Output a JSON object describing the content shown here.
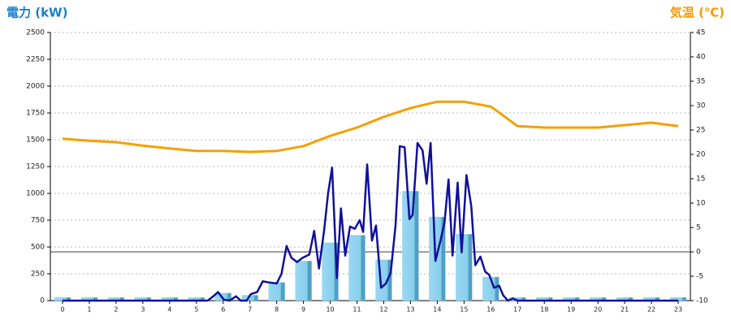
{
  "chart_data": {
    "type": "bar",
    "title": "電力 (kW)",
    "y2_title": "気温 (℃)",
    "title_color": "#1a7fc8",
    "y2_title_color": "#f59a00",
    "categories": [
      "0",
      "1",
      "2",
      "3",
      "4",
      "5",
      "6",
      "7",
      "8",
      "9",
      "10",
      "11",
      "12",
      "13",
      "14",
      "15",
      "16",
      "17",
      "18",
      "19",
      "20",
      "21",
      "22",
      "23"
    ],
    "series": [
      {
        "type": "bar",
        "color": "#87ceeb",
        "values": [
          30,
          30,
          30,
          30,
          30,
          30,
          70,
          50,
          170,
          370,
          540,
          610,
          380,
          1020,
          780,
          620,
          220,
          30,
          30,
          30,
          30,
          30,
          30,
          30
        ]
      },
      {
        "type": "line",
        "color": "#10109a",
        "x": [
          0,
          5.42,
          5.63,
          5.81,
          6.02,
          6.24,
          6.48,
          6.66,
          6.88,
          7.03,
          7.27,
          7.48,
          7.7,
          8.0,
          8.18,
          8.37,
          8.55,
          8.76,
          8.97,
          9.22,
          9.4,
          9.58,
          9.77,
          9.92,
          10.07,
          10.25,
          10.4,
          10.56,
          10.74,
          10.92,
          11.1,
          11.23,
          11.38,
          11.56,
          11.71,
          11.9,
          12.08,
          12.26,
          12.44,
          12.6,
          12.78,
          12.96,
          13.08,
          13.26,
          13.45,
          13.6,
          13.75,
          13.93,
          14.12,
          14.27,
          14.42,
          14.57,
          14.76,
          14.91,
          15.09,
          15.27,
          15.42,
          15.61,
          15.79,
          15.94,
          16.12,
          16.31,
          16.46,
          16.64,
          16.82,
          17,
          23
        ],
        "values": [
          0,
          0,
          40,
          80,
          10,
          0,
          40,
          0,
          0,
          60,
          80,
          180,
          170,
          160,
          250,
          510,
          400,
          360,
          400,
          430,
          650,
          300,
          650,
          1000,
          1240,
          210,
          860,
          420,
          690,
          670,
          750,
          640,
          1270,
          560,
          700,
          120,
          160,
          260,
          700,
          1440,
          1430,
          760,
          800,
          1470,
          1400,
          1090,
          1470,
          370,
          560,
          730,
          1130,
          420,
          1100,
          450,
          1170,
          880,
          330,
          410,
          270,
          240,
          120,
          140,
          50,
          0,
          20,
          0,
          0
        ]
      },
      {
        "type": "line",
        "axis": "y2",
        "color": "#f5a000",
        "values": [
          23.2,
          22.8,
          22.5,
          21.8,
          21.2,
          20.7,
          20.7,
          20.5,
          20.7,
          21.7,
          23.8,
          25.5,
          27.7,
          29.5,
          30.8,
          30.8,
          29.8,
          25.8,
          25.5,
          25.5,
          25.5,
          26,
          26.5,
          25.8
        ]
      }
    ],
    "ylim": [
      0,
      2500
    ],
    "yticks": [
      0,
      250,
      500,
      750,
      1000,
      1250,
      1500,
      1750,
      2000,
      2250,
      2500
    ],
    "y2lim": [
      -10,
      45
    ],
    "y2ticks": [
      -10,
      -5,
      0,
      5,
      10,
      15,
      20,
      25,
      30,
      35,
      40,
      45
    ],
    "grid": true
  }
}
